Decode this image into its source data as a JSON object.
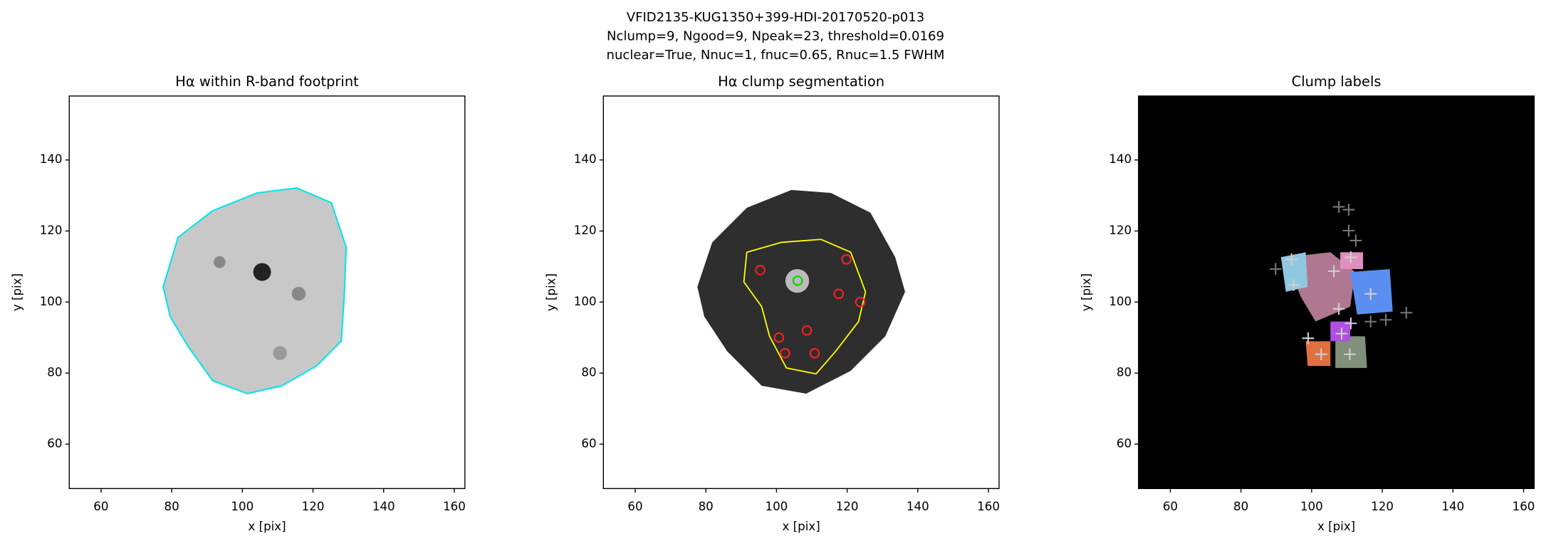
{
  "title": [
    "VFID2135-KUG1350+399-HDI-20170520-p013",
    "Nclump=9, Ngood=9, Npeak=23, threshold=0.0169",
    "nuclear=True, Nnuc=1, fnuc=0.65, Rnuc=1.5 FWHM"
  ],
  "chart_data": [
    {
      "type": "image",
      "title": "Hα within R-band footprint",
      "x_label": "x [pix]",
      "y_label": "y [pix]",
      "xlim": [
        51,
        163
      ],
      "ylim": [
        47.5,
        158
      ],
      "xticks": [
        60,
        80,
        100,
        120,
        140,
        160
      ],
      "yticks": [
        60,
        80,
        100,
        120,
        140
      ],
      "background": "#ffffff"
    },
    {
      "type": "scatter",
      "title": "Hα clump segmentation",
      "x_label": "x [pix]",
      "y_label": "y [pix]",
      "xlim": [
        51,
        163
      ],
      "ylim": [
        47.5,
        158
      ],
      "xticks": [
        60,
        80,
        100,
        120,
        140,
        160
      ],
      "yticks": [
        60,
        80,
        100,
        120,
        140
      ],
      "background": "#ffffff",
      "series": [
        {
          "marker": "circle",
          "color": "#ff2020",
          "x": [
            106,
            117.6,
            100.7,
            108.6,
            102.4,
            110.8,
            95.4,
            119.8,
            123.7
          ],
          "y": [
            106,
            102.3,
            90,
            92,
            85.6,
            85.6,
            109,
            112,
            100
          ]
        },
        {
          "marker": "circle",
          "color": "#00dd00",
          "x": [
            106
          ],
          "y": [
            106
          ]
        }
      ]
    },
    {
      "type": "scatter",
      "title": "Clump labels",
      "x_label": "x [pix]",
      "y_label": "y [pix]",
      "xlim": [
        51,
        163
      ],
      "ylim": [
        47.5,
        158
      ],
      "xticks": [
        60,
        80,
        100,
        120,
        140,
        160
      ],
      "yticks": [
        60,
        80,
        100,
        120,
        140
      ],
      "background": "#000000",
      "series": [
        {
          "marker": "plus",
          "color": "#d0d0d0",
          "x": [
            106.3,
            94.3,
            94.9,
            111.1,
            116.7,
            107.7,
            111.1,
            108.5,
            102.7,
            110.8,
            99
          ],
          "y": [
            108.7,
            112,
            104.8,
            112.6,
            102.3,
            98.1,
            94,
            91.1,
            85.3,
            85.3,
            89.8
          ]
        },
        {
          "marker": "plus",
          "color": "#777777",
          "x": [
            107.7,
            110.5,
            110.5,
            112.5,
            89.8,
            116.7,
            121,
            126.8
          ],
          "y": [
            126.8,
            126,
            120.1,
            117.3,
            109.3,
            94.5,
            95,
            97
          ]
        }
      ]
    }
  ]
}
